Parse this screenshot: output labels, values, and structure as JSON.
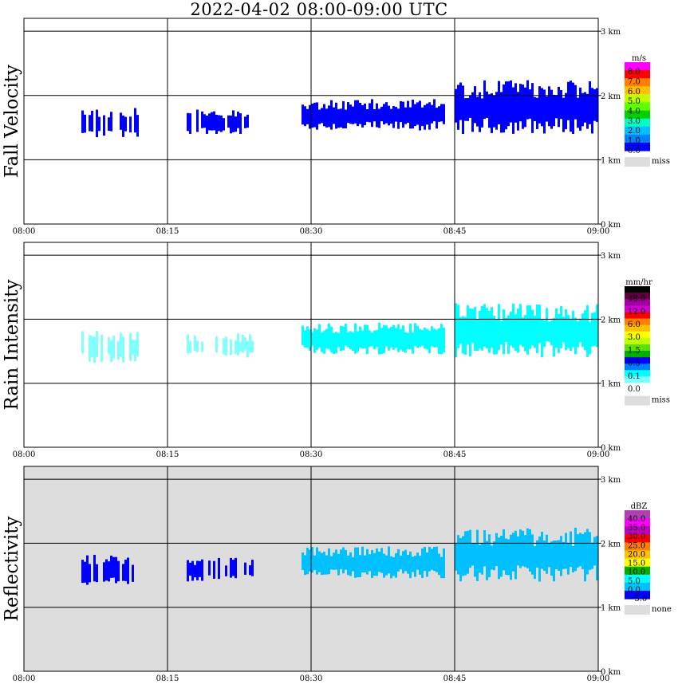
{
  "title": "2022-04-02   08:00-09:00 UTC",
  "x_ticks": [
    "08:00",
    "08:15",
    "08:30",
    "08:45",
    "09:00"
  ],
  "y_ticks": [
    "0 km",
    "1 km",
    "2 km",
    "3 km"
  ],
  "chart_data": [
    {
      "type": "heatmap",
      "ylabel": "Fall Velocity",
      "background": "#ffffff",
      "xlim": [
        "08:00",
        "09:00"
      ],
      "ylim_km": [
        0,
        3.2
      ],
      "legend": {
        "unit": "m/s",
        "labels": [
          "8.0",
          "7.0",
          "6.0",
          "5.0",
          "4.0",
          "3.0",
          "2.0",
          "1.0",
          "0.0"
        ],
        "colors": [
          "#ff00ff",
          "#ff0000",
          "#ff8000",
          "#ffc000",
          "#c0ff00",
          "#60ff00",
          "#00d000",
          "#00ffc0",
          "#00c0ff",
          "#0080ff",
          "#0000ff"
        ],
        "missing_label": "miss",
        "missing_color": "#dddddd"
      },
      "echo_regions": [
        {
          "t_start": "08:06",
          "t_end": "08:12",
          "h_bottom_km": 1.32,
          "h_top_km": 1.82,
          "color": "#0000ff"
        },
        {
          "t_start": "08:17",
          "t_end": "08:24",
          "h_bottom_km": 1.4,
          "h_top_km": 1.78,
          "color": "#0000ff"
        },
        {
          "t_start": "08:29",
          "t_end": "08:44",
          "h_bottom_km": 1.45,
          "h_top_km": 1.95,
          "color": "#0000ff"
        },
        {
          "t_start": "08:45",
          "t_end": "09:00",
          "h_bottom_km": 1.4,
          "h_top_km": 2.25,
          "color": "#0000ff"
        }
      ]
    },
    {
      "type": "heatmap",
      "ylabel": "Rain Intensity",
      "background": "#ffffff",
      "xlim": [
        "08:00",
        "09:00"
      ],
      "ylim_km": [
        0,
        3.2
      ],
      "legend": {
        "unit": "mm/hr",
        "labels": [
          "48.0",
          "12.0",
          "6.0",
          "3.0",
          "1.5",
          "0.5",
          "0.1",
          "0.0"
        ],
        "colors": [
          "#000000",
          "#600040",
          "#a000a0",
          "#d000d0",
          "#ff0000",
          "#ff8000",
          "#ffc000",
          "#ffff00",
          "#c0ff00",
          "#60e000",
          "#00b000",
          "#0000ff",
          "#0080ff",
          "#00ffff",
          "#80ffff",
          "#ffffff"
        ],
        "missing_label": "miss",
        "missing_color": "#dddddd"
      },
      "echo_regions": [
        {
          "t_start": "08:06",
          "t_end": "08:12",
          "h_bottom_km": 1.32,
          "h_top_km": 1.82,
          "color": "#80ffff"
        },
        {
          "t_start": "08:17",
          "t_end": "08:24",
          "h_bottom_km": 1.4,
          "h_top_km": 1.78,
          "color": "#80ffff"
        },
        {
          "t_start": "08:29",
          "t_end": "08:44",
          "h_bottom_km": 1.45,
          "h_top_km": 1.95,
          "color": "#00ffff"
        },
        {
          "t_start": "08:45",
          "t_end": "09:00",
          "h_bottom_km": 1.4,
          "h_top_km": 2.25,
          "color": "#00ffff"
        }
      ]
    },
    {
      "type": "heatmap",
      "ylabel": "Reflectivity",
      "background": "#dddddd",
      "xlim": [
        "08:00",
        "09:00"
      ],
      "ylim_km": [
        0,
        3.2
      ],
      "legend": {
        "unit": "dBZ",
        "labels": [
          "40.0",
          "35.0",
          "30.0",
          "25.0",
          "20.0",
          "15.0",
          "10.0",
          "5.0",
          "0.0",
          "−5.0"
        ],
        "colors": [
          "#b040b0",
          "#ff00ff",
          "#c000c0",
          "#ff0000",
          "#ff8000",
          "#ffc000",
          "#ffff00",
          "#00b000",
          "#00ffff",
          "#00c0ff",
          "#0000ff"
        ],
        "missing_label": "none",
        "missing_color": "#dddddd"
      },
      "echo_regions": [
        {
          "t_start": "08:06",
          "t_end": "08:12",
          "h_bottom_km": 1.32,
          "h_top_km": 1.82,
          "color": "#0000ff"
        },
        {
          "t_start": "08:17",
          "t_end": "08:24",
          "h_bottom_km": 1.4,
          "h_top_km": 1.78,
          "color": "#0000ff"
        },
        {
          "t_start": "08:29",
          "t_end": "08:44",
          "h_bottom_km": 1.45,
          "h_top_km": 1.95,
          "color": "#00c0ff"
        },
        {
          "t_start": "08:45",
          "t_end": "09:00",
          "h_bottom_km": 1.4,
          "h_top_km": 2.25,
          "color": "#00c0ff"
        }
      ]
    }
  ]
}
